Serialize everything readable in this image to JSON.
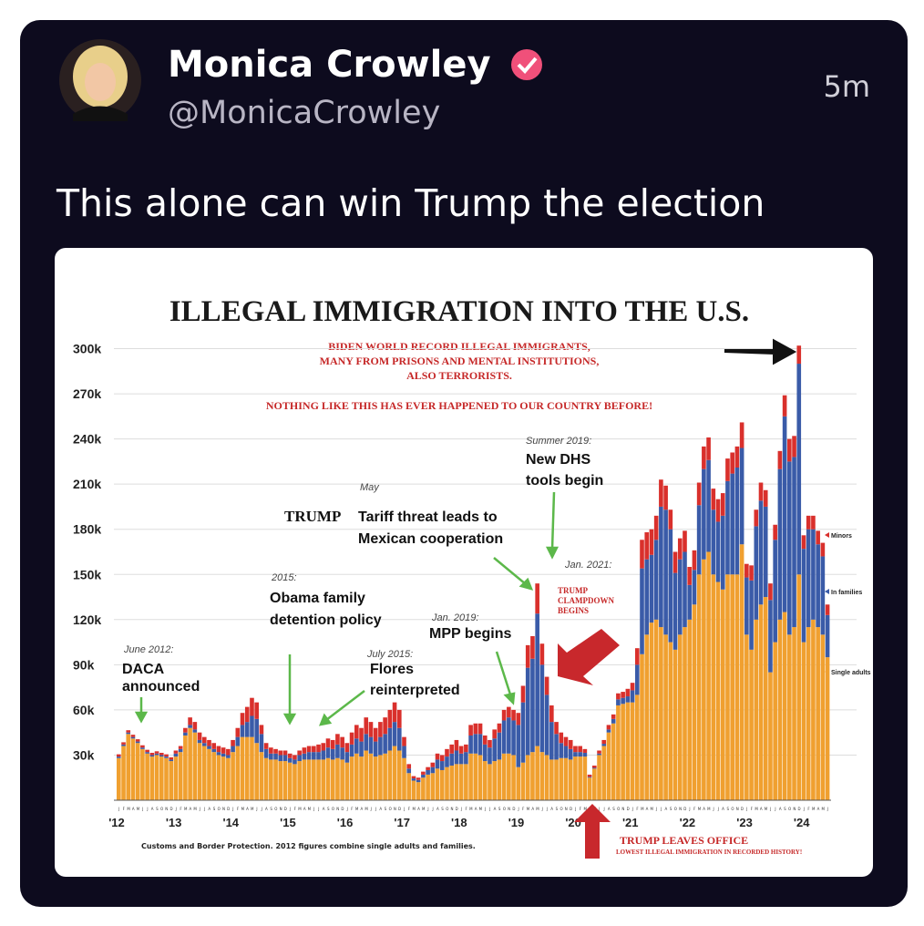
{
  "tweet": {
    "author": "Monica Crowley",
    "handle": "@MonicaCrowley",
    "time": "5m",
    "text": "This alone can win Trump the election"
  },
  "chart_data": {
    "type": "bar",
    "stacked": true,
    "grid": true,
    "title": "ILLEGAL IMMIGRATION INTO THE U.S.",
    "annotations": [
      "BIDEN WORLD RECORD ILLEGAL IMMIGRANTS,",
      "MANY FROM PRISONS AND MENTAL INSTITUTIONS,",
      "ALSO TERRORISTS.",
      "NOTHING LIKE THIS HAS EVER HAPPENED TO OUR COUNTRY BEFORE!",
      "June 2012:",
      "DACA",
      "announced",
      "2015:",
      "Obama family",
      "detention policy",
      "July 2015:",
      "Flores",
      "reinterpreted",
      "May",
      "TRUMP",
      "Tariff threat leads to",
      "Mexican cooperation",
      "Summer 2019:",
      "New DHS",
      "tools begin",
      "Jan. 2019:",
      "MPP begins",
      "Jan. 2021:",
      "TRUMP",
      "CLAMPDOWN",
      "BEGINS",
      "TRUMP LEAVES OFFICE",
      "LOWEST ILLEGAL IMMIGRATION IN RECORDED HISTORY!"
    ],
    "source": "Customs and Border Protection. 2012 figures combine single adults and families.",
    "year_labels": [
      "'12",
      "'13",
      "'14",
      "'15",
      "'16",
      "'17",
      "'18",
      "'19",
      "'20",
      "'21",
      "'22",
      "'23",
      "'24"
    ],
    "categories": [
      "J",
      "F",
      "M",
      "A",
      "M",
      "J",
      "J",
      "A",
      "S",
      "O",
      "N",
      "D",
      "J",
      "F",
      "M",
      "A",
      "M",
      "J",
      "J",
      "A",
      "S",
      "O",
      "N",
      "D",
      "J",
      "F",
      "M",
      "A",
      "M",
      "J",
      "J",
      "A",
      "S",
      "O",
      "N",
      "D",
      "J",
      "F",
      "M",
      "A",
      "M",
      "J",
      "J",
      "A",
      "S",
      "O",
      "N",
      "D",
      "J",
      "F",
      "M",
      "A",
      "M",
      "J",
      "J",
      "A",
      "S",
      "O",
      "N",
      "D",
      "J",
      "F",
      "M",
      "A",
      "M",
      "J",
      "J",
      "A",
      "S",
      "O",
      "N",
      "D",
      "J",
      "F",
      "M",
      "A",
      "M",
      "J",
      "J",
      "A",
      "S",
      "O",
      "N",
      "D",
      "J",
      "F",
      "M",
      "A",
      "M",
      "J",
      "J",
      "A",
      "S",
      "O",
      "N",
      "D",
      "J",
      "F",
      "M",
      "A",
      "M",
      "J",
      "J",
      "A",
      "S",
      "O",
      "N",
      "D",
      "J",
      "F",
      "M",
      "A",
      "M",
      "J",
      "J",
      "A",
      "S",
      "O",
      "N",
      "D",
      "J",
      "F",
      "M",
      "A",
      "M",
      "J",
      "J",
      "A",
      "S",
      "O",
      "N",
      "D",
      "J",
      "F",
      "M",
      "A",
      "M",
      "J",
      "J",
      "A",
      "S",
      "O",
      "N",
      "D",
      "J",
      "F",
      "M",
      "A",
      "M",
      "J"
    ],
    "ylim": [
      0,
      310000
    ],
    "yticks": [
      {
        "value": 30000,
        "label": "30k"
      },
      {
        "value": 60000,
        "label": "60k"
      },
      {
        "value": 90000,
        "label": "90k"
      },
      {
        "value": 120000,
        "label": "120k"
      },
      {
        "value": 150000,
        "label": "150k"
      },
      {
        "value": 180000,
        "label": "180k"
      },
      {
        "value": 210000,
        "label": "210k"
      },
      {
        "value": 240000,
        "label": "240k"
      },
      {
        "value": 270000,
        "label": "270k"
      },
      {
        "value": 300000,
        "label": "300k"
      }
    ],
    "series": [
      {
        "name": "Single adults",
        "color": "#f0a030",
        "values": [
          28000,
          36000,
          44000,
          41000,
          38000,
          34000,
          31000,
          29000,
          30000,
          29000,
          28000,
          26000,
          29000,
          32000,
          43000,
          48000,
          45000,
          38000,
          36000,
          34000,
          32000,
          30000,
          29000,
          28000,
          32000,
          36000,
          42000,
          42000,
          42000,
          38000,
          32000,
          28000,
          27000,
          27000,
          26000,
          26000,
          25000,
          24000,
          26000,
          27000,
          27000,
          27000,
          27000,
          27000,
          28000,
          27000,
          28000,
          27000,
          25000,
          29000,
          31000,
          29000,
          33000,
          31000,
          29000,
          30000,
          31000,
          33000,
          36000,
          33000,
          28000,
          18000,
          13000,
          12000,
          15000,
          17000,
          18000,
          21000,
          20000,
          22000,
          23000,
          24000,
          24000,
          24000,
          31000,
          31000,
          30000,
          26000,
          24000,
          26000,
          27000,
          31000,
          31000,
          30000,
          22000,
          25000,
          30000,
          32000,
          36000,
          32000,
          30000,
          27000,
          27000,
          28000,
          28000,
          27000,
          29000,
          29000,
          29000,
          15000,
          21000,
          30000,
          36000,
          45000,
          51000,
          63000,
          64000,
          65000,
          65000,
          70000,
          97000,
          110000,
          118000,
          120000,
          115000,
          110000,
          105000,
          100000,
          110000,
          115000,
          120000,
          130000,
          150000,
          160000,
          165000,
          150000,
          145000,
          140000,
          150000,
          150000,
          150000,
          170000,
          110000,
          100000,
          120000,
          130000,
          135000,
          85000,
          105000,
          120000,
          125000,
          110000,
          115000,
          150000,
          105000,
          115000,
          120000,
          115000,
          110000,
          95000
        ]
      },
      {
        "name": "In families",
        "color": "#3a5ba8",
        "values": [
          1000,
          1000,
          1000,
          1000,
          1000,
          1000,
          1000,
          1000,
          1000,
          1000,
          1000,
          1000,
          2000,
          2000,
          2000,
          2000,
          2000,
          2000,
          2000,
          2000,
          2000,
          2000,
          2000,
          2000,
          4000,
          6000,
          8000,
          10000,
          14000,
          16000,
          12000,
          6000,
          4000,
          4000,
          4000,
          4000,
          3000,
          3000,
          4000,
          4000,
          5000,
          5000,
          5000,
          6000,
          7000,
          7000,
          9000,
          8000,
          7000,
          8000,
          10000,
          10000,
          11000,
          11000,
          10000,
          12000,
          13000,
          15000,
          16000,
          15000,
          8000,
          3000,
          1500,
          1500,
          2000,
          3000,
          4000,
          6000,
          6000,
          7000,
          8000,
          9000,
          7000,
          8000,
          12000,
          13000,
          14000,
          11000,
          11000,
          15000,
          18000,
          22000,
          24000,
          23000,
          28000,
          40000,
          58000,
          62000,
          88000,
          58000,
          40000,
          25000,
          17000,
          10000,
          8000,
          7000,
          3000,
          3000,
          2500,
          500,
          500,
          1000,
          1500,
          2000,
          3000,
          4000,
          4000,
          4000,
          8000,
          20000,
          57000,
          50000,
          45000,
          53000,
          80000,
          83000,
          75000,
          51000,
          50000,
          50000,
          23000,
          23000,
          46000,
          60000,
          61000,
          43000,
          40000,
          49000,
          62000,
          67000,
          71000,
          64000,
          38000,
          46000,
          62000,
          69000,
          60000,
          48000,
          68000,
          100000,
          130000,
          115000,
          113000,
          140000,
          62000,
          65000,
          60000,
          55000,
          52000,
          28000
        ]
      },
      {
        "name": "Minors",
        "color": "#d9302c",
        "values": [
          1500,
          1500,
          1500,
          1500,
          1500,
          1500,
          1500,
          1500,
          1500,
          1500,
          1500,
          1500,
          2000,
          2000,
          3000,
          5000,
          5000,
          5000,
          4000,
          4000,
          4000,
          4000,
          4000,
          4000,
          4000,
          6000,
          8000,
          10000,
          12000,
          11000,
          6000,
          4000,
          4000,
          3000,
          3000,
          3000,
          3000,
          3000,
          3000,
          4000,
          4000,
          4000,
          5000,
          5000,
          6000,
          6000,
          7000,
          7000,
          6000,
          8000,
          9000,
          9000,
          11000,
          10000,
          9000,
          10000,
          11000,
          12000,
          13000,
          12000,
          6000,
          3000,
          1500,
          1500,
          2000,
          2000,
          3000,
          4000,
          4000,
          5000,
          6000,
          7000,
          5000,
          5000,
          7000,
          7000,
          7000,
          6000,
          5000,
          6000,
          6000,
          7000,
          7000,
          7000,
          8000,
          11000,
          15000,
          15000,
          20000,
          14000,
          12000,
          11000,
          8000,
          7000,
          6000,
          6000,
          4000,
          4000,
          2500,
          1500,
          1500,
          2000,
          2500,
          3000,
          3000,
          4000,
          4000,
          5000,
          5000,
          11000,
          19000,
          18000,
          17000,
          16000,
          18000,
          16000,
          13000,
          14000,
          14000,
          14000,
          12000,
          13000,
          15000,
          15000,
          15000,
          14000,
          15000,
          15000,
          15000,
          14000,
          14000,
          17000,
          9000,
          10000,
          11000,
          12000,
          11000,
          11000,
          10000,
          12000,
          14000,
          15000,
          14000,
          12000,
          9000,
          9000,
          9000,
          9000,
          9000,
          7000
        ]
      }
    ]
  }
}
